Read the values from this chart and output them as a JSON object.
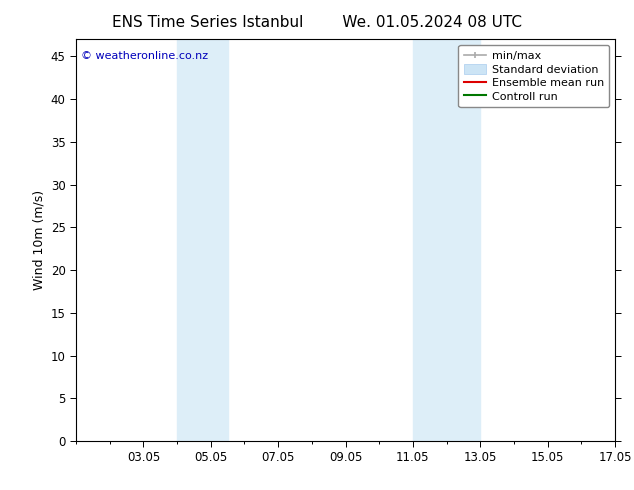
{
  "title_left": "ENS Time Series Istanbul",
  "title_right": "We. 01.05.2024 08 UTC",
  "ylabel": "Wind 10m (m/s)",
  "watermark": "© weatheronline.co.nz",
  "xlim": [
    1,
    17
  ],
  "xtick_positions": [
    3,
    5,
    7,
    9,
    11,
    13,
    15,
    17
  ],
  "xtick_labels": [
    "03.05",
    "05.05",
    "07.05",
    "09.05",
    "11.05",
    "13.05",
    "15.05",
    "17.05"
  ],
  "ylim": [
    0,
    47
  ],
  "ytick_positions": [
    0,
    5,
    10,
    15,
    20,
    25,
    30,
    35,
    40,
    45
  ],
  "ytick_labels": [
    "0",
    "5",
    "10",
    "15",
    "20",
    "25",
    "30",
    "35",
    "40",
    "45"
  ],
  "background_color": "#ffffff",
  "plot_bg_color": "#ffffff",
  "shaded_bands": [
    {
      "x_start": 4.0,
      "x_end": 5.5,
      "color": "#ddeef8"
    },
    {
      "x_start": 11.0,
      "x_end": 13.0,
      "color": "#ddeef8"
    }
  ],
  "title_fontsize": 11,
  "axis_fontsize": 9,
  "tick_fontsize": 8.5,
  "watermark_color": "#0000bb",
  "watermark_fontsize": 8,
  "legend_fontsize": 8
}
